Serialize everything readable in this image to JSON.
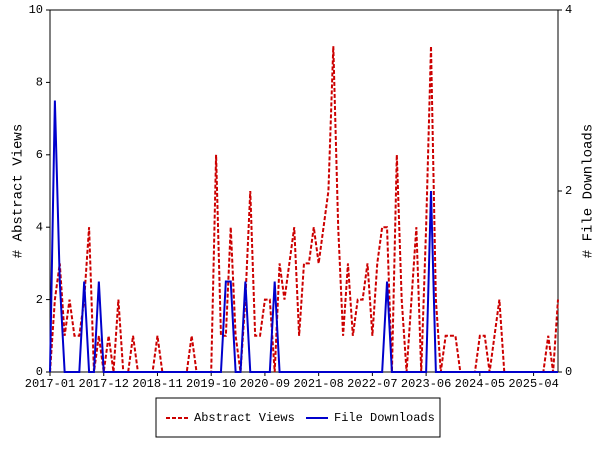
{
  "chart_data": {
    "type": "line",
    "categories": [
      "2017-01",
      null,
      null,
      null,
      null,
      null,
      null,
      null,
      null,
      null,
      null,
      "2017-12",
      null,
      null,
      null,
      null,
      null,
      null,
      null,
      null,
      null,
      null,
      "2018-11",
      null,
      null,
      null,
      null,
      null,
      null,
      null,
      null,
      null,
      null,
      "2019-10",
      null,
      null,
      null,
      null,
      null,
      null,
      null,
      null,
      null,
      null,
      "2020-09",
      null,
      null,
      null,
      null,
      null,
      null,
      null,
      null,
      null,
      null,
      "2021-08",
      null,
      null,
      null,
      null,
      null,
      null,
      null,
      null,
      null,
      null,
      "2022-07",
      null,
      null,
      null,
      null,
      null,
      null,
      null,
      null,
      null,
      null,
      "2023-06",
      null,
      null,
      null,
      null,
      null,
      null,
      null,
      null,
      null,
      null,
      "2024-05",
      null,
      null,
      null,
      null,
      null,
      null,
      null,
      null,
      null,
      null,
      "2025-04",
      null,
      null,
      null,
      null,
      null
    ],
    "series": [
      {
        "name": "Abstract Views",
        "color": "#cc0000",
        "dashed": true,
        "values": [
          0,
          2,
          3,
          1,
          2,
          1,
          1,
          2,
          4,
          0,
          1,
          0,
          1,
          0,
          2,
          0,
          0,
          1,
          0,
          0,
          0,
          0,
          1,
          0,
          0,
          0,
          0,
          0,
          0,
          1,
          0,
          0,
          0,
          0,
          6,
          1,
          1,
          4,
          1,
          0,
          2,
          5,
          1,
          1,
          2,
          2,
          0,
          3,
          2,
          3,
          4,
          1,
          3,
          3,
          4,
          3,
          4,
          5,
          9,
          4,
          1,
          3,
          1,
          2,
          2,
          3,
          1,
          3,
          4,
          4,
          0,
          6,
          2,
          0,
          2,
          4,
          0,
          4,
          9,
          2,
          0,
          1,
          1,
          1,
          0,
          0,
          0,
          0,
          1,
          1,
          0,
          1,
          2,
          0,
          0,
          0,
          0,
          0,
          0,
          0,
          0,
          0,
          1,
          0,
          2
        ]
      },
      {
        "name": "File Downloads",
        "color": "#0000cc",
        "axis": "y2",
        "values": [
          0,
          3,
          1,
          0,
          0,
          0,
          0,
          1,
          0,
          0,
          1,
          0,
          0,
          0,
          0,
          0,
          0,
          0,
          0,
          0,
          0,
          0,
          0,
          0,
          0,
          0,
          0,
          0,
          0,
          0,
          0,
          0,
          0,
          0,
          0,
          0,
          1,
          1,
          0,
          0,
          1,
          0,
          0,
          0,
          0,
          0,
          1,
          0,
          0,
          0,
          0,
          0,
          0,
          0,
          0,
          0,
          0,
          0,
          0,
          0,
          0,
          0,
          0,
          0,
          0,
          0,
          0,
          0,
          0,
          1,
          0,
          0,
          0,
          0,
          0,
          0,
          0,
          0,
          2,
          0,
          0,
          0,
          0,
          0,
          0,
          0,
          0,
          0,
          0,
          0,
          0,
          0,
          0,
          0,
          0,
          0,
          0,
          0,
          0,
          0,
          0,
          0,
          0,
          0,
          0
        ]
      }
    ],
    "y_label": "# Abstract Views",
    "y2_label": "# File Downloads",
    "ylim": [
      0,
      10
    ],
    "yticks": [
      0,
      2,
      4,
      6,
      8,
      10
    ],
    "y2lim": [
      0,
      4
    ],
    "y2ticks": [
      0,
      2,
      4
    ],
    "legend": "bottom"
  }
}
